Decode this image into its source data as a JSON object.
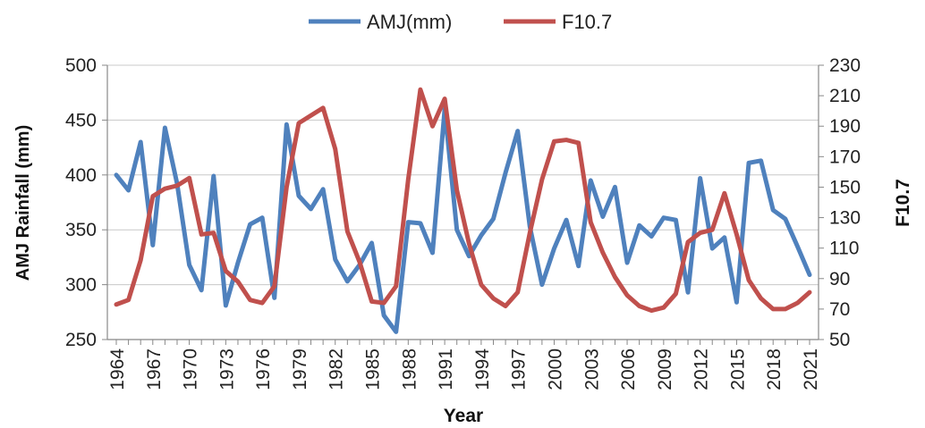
{
  "chart_data": {
    "type": "line",
    "xlabel": "Year",
    "ylabel": "AMJ Rainfall (mm)",
    "y2label": "F10.7",
    "ylim": [
      250,
      500
    ],
    "y2lim": [
      50,
      230
    ],
    "yticks": [
      250,
      300,
      350,
      400,
      450,
      500
    ],
    "y2ticks": [
      50,
      70,
      90,
      110,
      130,
      150,
      170,
      190,
      210,
      230
    ],
    "x": [
      1964,
      1965,
      1966,
      1967,
      1968,
      1969,
      1970,
      1971,
      1972,
      1973,
      1974,
      1975,
      1976,
      1977,
      1978,
      1979,
      1980,
      1981,
      1982,
      1983,
      1984,
      1985,
      1986,
      1987,
      1988,
      1989,
      1990,
      1991,
      1992,
      1993,
      1994,
      1995,
      1996,
      1997,
      1998,
      1999,
      2000,
      2001,
      2002,
      2003,
      2004,
      2005,
      2006,
      2007,
      2008,
      2009,
      2010,
      2011,
      2012,
      2013,
      2014,
      2015,
      2016,
      2017,
      2018,
      2019,
      2020,
      2021
    ],
    "xtick_labels": [
      "1964",
      "1967",
      "1970",
      "1973",
      "1976",
      "1979",
      "1982",
      "1985",
      "1988",
      "1991",
      "1994",
      "1997",
      "2000",
      "2003",
      "2006",
      "2009",
      "2012",
      "2015",
      "2018",
      "2021"
    ],
    "legend_position": "top",
    "grid": "horizontal",
    "series": [
      {
        "name": "AMJ(mm)",
        "axis": "left",
        "color": "#4F81BD",
        "values": [
          400,
          386,
          430,
          336,
          443,
          392,
          318,
          295,
          399,
          281,
          320,
          355,
          361,
          288,
          446,
          381,
          369,
          387,
          323,
          303,
          318,
          338,
          272,
          257,
          357,
          356,
          329,
          460,
          350,
          326,
          345,
          360,
          402,
          440,
          353,
          300,
          333,
          359,
          317,
          395,
          362,
          389,
          320,
          354,
          344,
          361,
          359,
          293,
          397,
          333,
          343,
          284,
          411,
          413,
          368,
          360,
          335,
          309
        ]
      },
      {
        "name": "F10.7",
        "axis": "right",
        "color": "#C0504D",
        "values": [
          73,
          76,
          102,
          144,
          149,
          151,
          156,
          119,
          120,
          95,
          88,
          76,
          74,
          85,
          150,
          192,
          197,
          202,
          175,
          121,
          101,
          75,
          74,
          85,
          155,
          214,
          190,
          208,
          148,
          113,
          86,
          77,
          72,
          81,
          120,
          155,
          180,
          181,
          179,
          127,
          107,
          91,
          79,
          72,
          69,
          71,
          80,
          114,
          120,
          122,
          146,
          119,
          89,
          77,
          70,
          70,
          74,
          81
        ]
      }
    ]
  }
}
